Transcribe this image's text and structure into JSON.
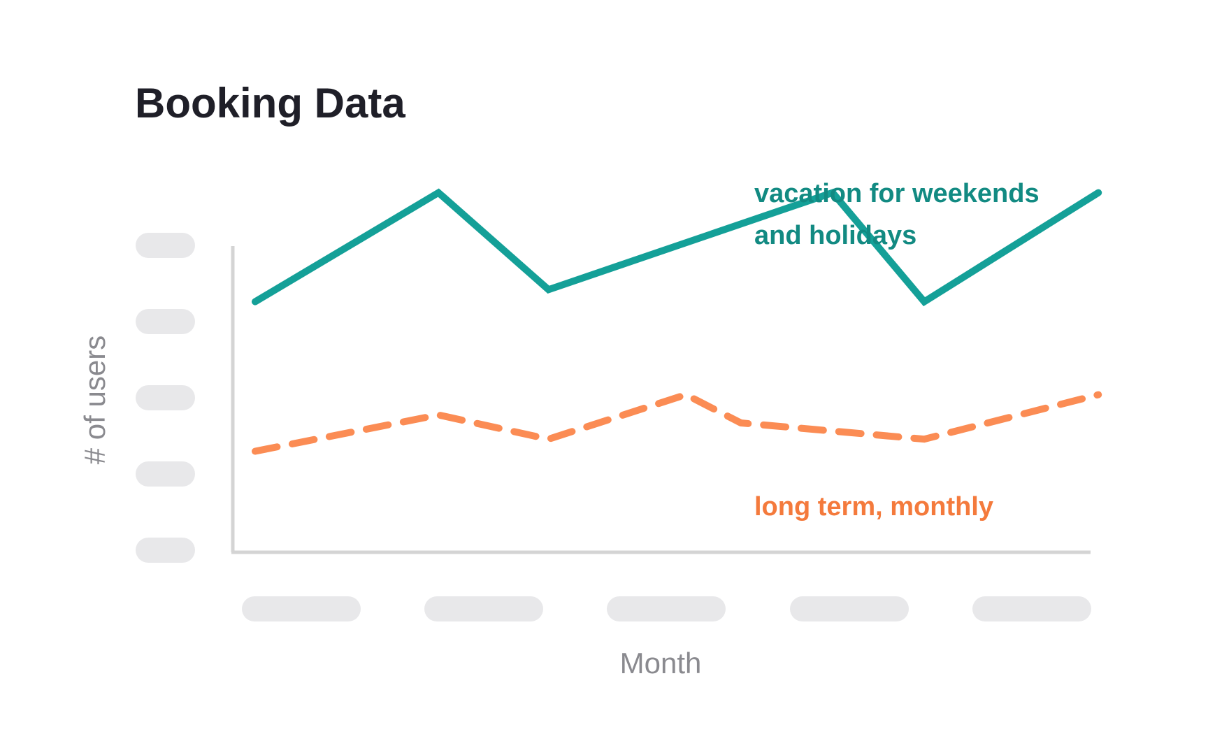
{
  "chart_data": {
    "type": "line",
    "title": "Booking Data",
    "xlabel": "Month",
    "ylabel": "# of users",
    "x": [
      0,
      1,
      2,
      3,
      4,
      5,
      6,
      7,
      8,
      9
    ],
    "x_ticks": [
      "",
      "",
      "",
      "",
      ""
    ],
    "y_ticks": [
      "",
      "",
      "",
      "",
      ""
    ],
    "xlim": [
      0,
      9
    ],
    "ylim": [
      0,
      100
    ],
    "grid": false,
    "series": [
      {
        "name": "vacation for weekends and holidays",
        "label_lines": [
          "vacation for weekends",
          "and holidays"
        ],
        "style": "solid",
        "color": "#14a098",
        "label_color": "#128a82",
        "x": [
          0,
          2,
          3.2,
          6.3,
          7.3,
          9.2
        ],
        "values": [
          62,
          89,
          65,
          89,
          62,
          89
        ]
      },
      {
        "name": "long term, monthly",
        "label_lines": [
          "long term, monthly"
        ],
        "style": "dashed",
        "color": "#fb8c54",
        "label_color": "#f47a3c",
        "x": [
          0,
          2,
          3.2,
          4.7,
          5.3,
          7.3,
          9.2
        ],
        "values": [
          25,
          34,
          28,
          39,
          32,
          28,
          39
        ]
      }
    ],
    "axis_color": "#d4d4d4",
    "placeholder_color": "#e8e8ea",
    "title_color": "#1f1f28",
    "axis_title_color": "#8a8a8f"
  }
}
